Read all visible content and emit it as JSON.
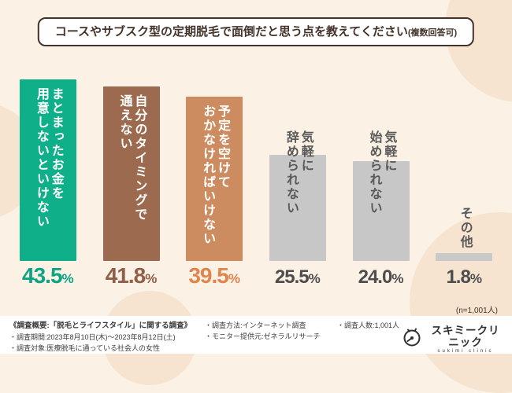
{
  "header": {
    "title": "コースやサブスク型の定期脱毛で面倒だと思う点を教えてください",
    "note": "(複数回答可)"
  },
  "chart_data": {
    "type": "bar",
    "title": "コースやサブスク型の定期脱毛で面倒だと思う点を教えてください(複数回答可)",
    "categories": [
      "まとまったお金を用意しないといけない",
      "自分のタイミングで通えない",
      "予定を空けておかなければいけない",
      "気軽に辞められない",
      "気軽に始められない",
      "その他"
    ],
    "values": [
      43.5,
      41.8,
      39.5,
      25.5,
      24.0,
      1.8
    ],
    "unit": "%",
    "ylim": [
      0,
      47
    ],
    "n_note": "(n=1,001人)",
    "bars": [
      {
        "lines": [
          "まとまったお金を",
          "用意しないといけない"
        ],
        "value": 43.5,
        "pct": "43.5",
        "bar_color": "#0fb089",
        "pct_color": "#0aa582",
        "label_color": "#ffffff",
        "label_pos": "inside"
      },
      {
        "lines": [
          "自分のタイミングで",
          "通えない"
        ],
        "value": 41.8,
        "pct": "41.8",
        "bar_color": "#9c6a4e",
        "pct_color": "#8f5f48",
        "label_color": "#ffffff",
        "label_pos": "inside"
      },
      {
        "lines": [
          "予定を空けて",
          "おかなければいけない"
        ],
        "value": 39.5,
        "pct": "39.5",
        "bar_color": "#cd8b60",
        "pct_color": "#e0854d",
        "label_color": "#ffffff",
        "label_pos": "inside"
      },
      {
        "lines": [
          "気軽に",
          "辞められない"
        ],
        "value": 25.5,
        "pct": "25.5",
        "bar_color": "#c7c7c7",
        "pct_color": "#4d4d4d",
        "label_color": "#595959",
        "label_pos": "overlap"
      },
      {
        "lines": [
          "気軽に",
          "始められない"
        ],
        "value": 24.0,
        "pct": "24.0",
        "bar_color": "#c7c7c7",
        "pct_color": "#4d4d4d",
        "label_color": "#595959",
        "label_pos": "overlap"
      },
      {
        "lines": [
          "その他"
        ],
        "value": 1.8,
        "pct": "1.8",
        "bar_color": "#c9c9c9",
        "pct_color": "#4d4d4d",
        "label_color": "#595959",
        "label_pos": "above"
      }
    ]
  },
  "footer": {
    "heading": "《調査概要:「脱毛とライフスタイル」に関する調査》",
    "col1": [
      "・調査期間:2023年8月10日(木)〜2023年8月12日(土)",
      "・調査対象:医療脱毛に通っている社会人の女性"
    ],
    "col2": [
      "・調査方法:インターネット調査",
      "・モニター提供元:ゼネラルリサーチ"
    ],
    "col3": [
      "・調査人数:1,001人"
    ],
    "logo_text": "スキミークリニック",
    "logo_sub": "sukimi clinic"
  }
}
